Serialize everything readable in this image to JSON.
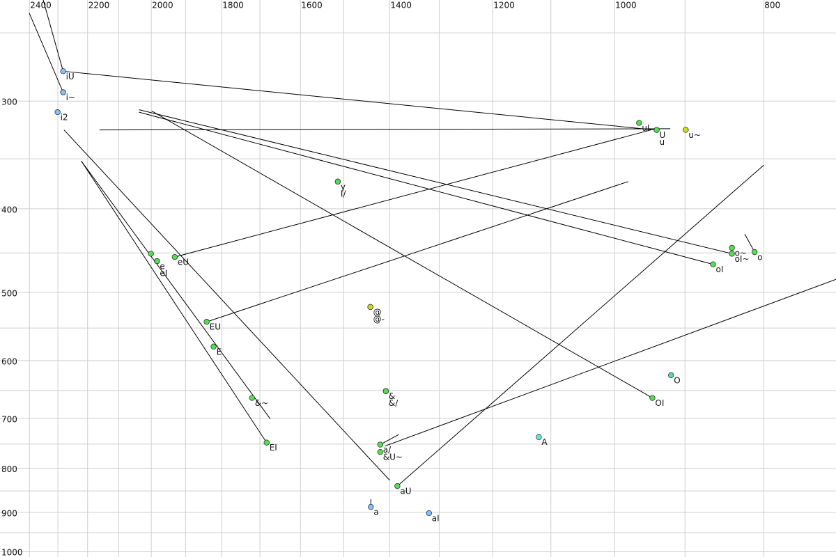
{
  "chart_data": {
    "type": "scatter",
    "xlim": [
      718,
      2508
    ],
    "ylim": [
      229,
      1014
    ],
    "x_log": true,
    "y_log": true,
    "x_reversed": true,
    "y_reversed": true,
    "xticks": [
      2400,
      2200,
      2000,
      1800,
      1600,
      1400,
      1200,
      1000,
      800
    ],
    "yticks": [
      300,
      400,
      500,
      600,
      700,
      800,
      900,
      1000
    ],
    "xgrid": [
      2400,
      2300,
      2200,
      2100,
      2000,
      1900,
      1800,
      1700,
      1600,
      1500,
      1400,
      1300,
      1200,
      1100,
      1000,
      900,
      800
    ],
    "ygrid": [
      250,
      300,
      350,
      400,
      450,
      500,
      550,
      600,
      650,
      700,
      750,
      800,
      850,
      900,
      950,
      1000
    ],
    "grid": true,
    "x": [
      2282,
      2282,
      2301,
      2001,
      1983,
      1983,
      1931,
      1841,
      1822,
      1720,
      1683,
      1513,
      1513,
      1441,
      1441,
      1408,
      1408,
      1420,
      1420,
      1384,
      1440,
      1320,
      1120,
      919,
      945,
      964,
      939,
      939,
      899,
      839,
      839,
      863,
      811
    ],
    "values": [
      277,
      293,
      309,
      451,
      460,
      460,
      455,
      541,
      578,
      663,
      747,
      372,
      372,
      520,
      520,
      651,
      651,
      751,
      766,
      839,
      887,
      902,
      736,
      624,
      663,
      318,
      324,
      324,
      324,
      444,
      451,
      464,
      449
    ],
    "labels": [
      "iU",
      "i~",
      "i2",
      null,
      "e",
      "eI",
      "eU",
      "EU",
      "E",
      "&~",
      "EI",
      "y",
      "I/",
      "@",
      "@-",
      "&",
      "&/",
      "a/",
      "&U~",
      "aU",
      "a",
      "aI",
      "A",
      "O",
      "OI",
      "uI",
      "U",
      "u",
      "u~",
      "o~",
      "oI~",
      "oI",
      "o"
    ],
    "colors": [
      "#80c0ff",
      "#80c0ff",
      "#80c0ff",
      "#50e050",
      "#50e050",
      "#50e050",
      "#50e050",
      "#50e050",
      "#50e050",
      "#50e050",
      "#50e050",
      "#50e050",
      "#50e050",
      "#c8e020",
      "#c8e020",
      "#50e050",
      "#50e050",
      "#50e050",
      "#50e050",
      "#50e050",
      "#80c0ff",
      "#80c0ff",
      "#60e8e0",
      "#50e0a0",
      "#50e050",
      "#50e050",
      "#50e050",
      "#50e050",
      "#c8e020",
      "#50e050",
      "#50e050",
      "#50e050",
      "#50e050"
    ],
    "segments": {
      "x1": [
        2351,
        2282,
        2401,
        2161,
        2037,
        2037,
        1999,
        1931,
        1841,
        2221,
        2221,
        2279,
        800,
        718,
        1420,
        823,
        1440
      ],
      "y1": [
        229,
        277,
        237,
        324,
        307,
        309,
        308,
        455,
        541,
        352,
        352,
        324,
        356,
        483,
        751,
        428,
        869
      ],
      "x2": [
        2282,
        942,
        2282,
        920,
        839,
        863,
        945,
        947,
        980,
        1674,
        1683,
        1400,
        1384,
        1410,
        1381,
        811,
        1440
      ],
      "y2": [
        277,
        324,
        293,
        323,
        451,
        464,
        663,
        324,
        372,
        701,
        747,
        826,
        839,
        754,
        731,
        449,
        887
      ]
    }
  }
}
